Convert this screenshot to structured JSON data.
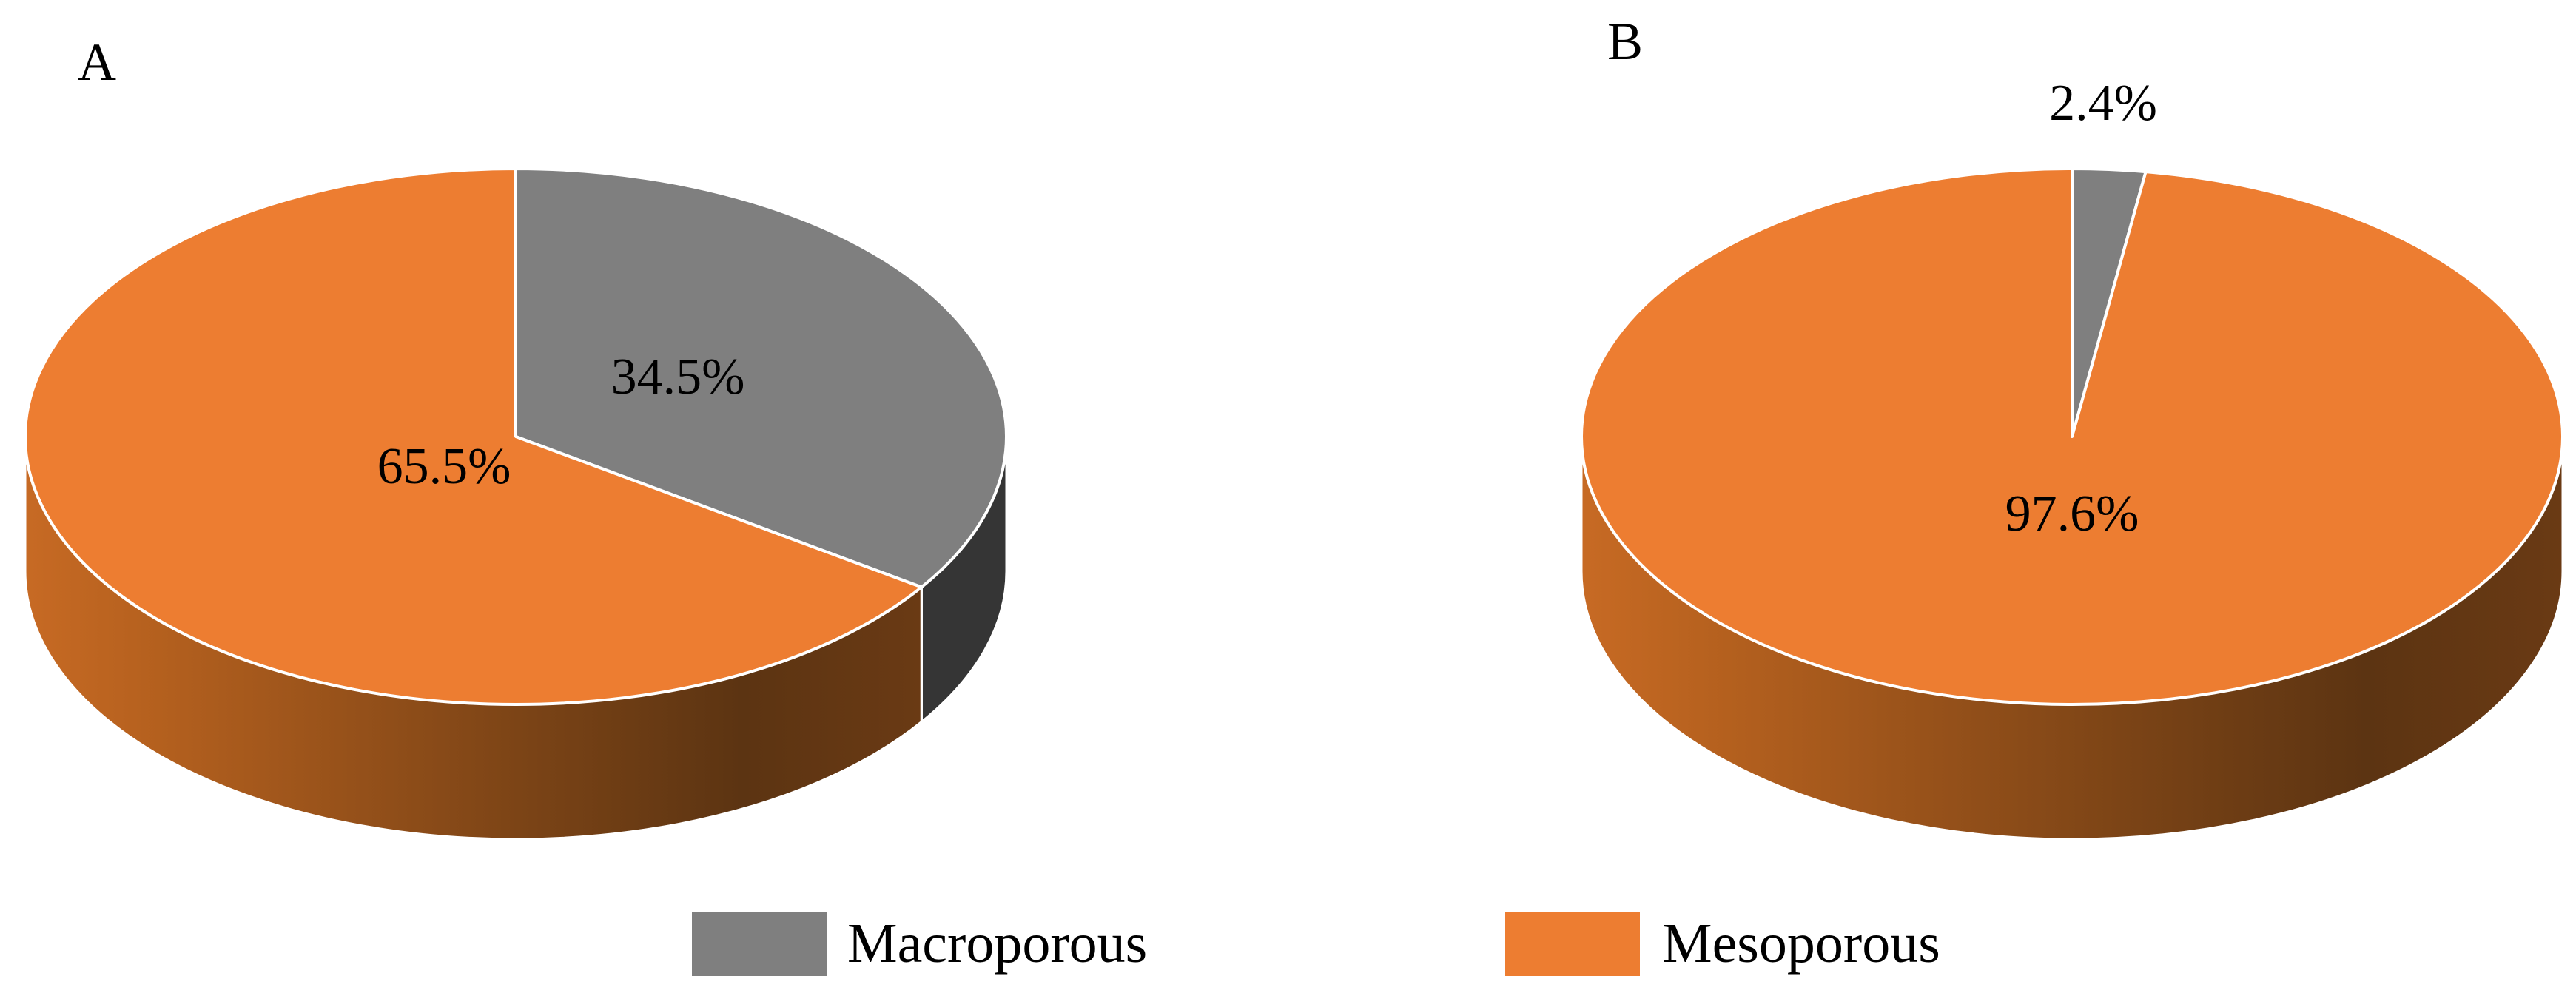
{
  "legend": [
    {
      "label": "Macroporous",
      "color": "#7f7f7f"
    },
    {
      "label": "Mesoporous",
      "color": "#ed7d31"
    }
  ],
  "chart_data": [
    {
      "type": "pie",
      "panel": "A",
      "categories": [
        "Macroporous",
        "Mesoporous"
      ],
      "values": [
        34.5,
        65.5
      ],
      "labels": [
        "34.5%",
        "65.5%"
      ],
      "colors": [
        "#7f7f7f",
        "#ed7d31"
      ],
      "style": "3d",
      "legend_position": "bottom"
    },
    {
      "type": "pie",
      "panel": "B",
      "categories": [
        "Macroporous",
        "Mesoporous"
      ],
      "values": [
        2.4,
        97.6
      ],
      "labels": [
        "2.4%",
        "97.6%"
      ],
      "colors": [
        "#7f7f7f",
        "#ed7d31"
      ],
      "style": "3d",
      "legend_position": "bottom"
    }
  ]
}
